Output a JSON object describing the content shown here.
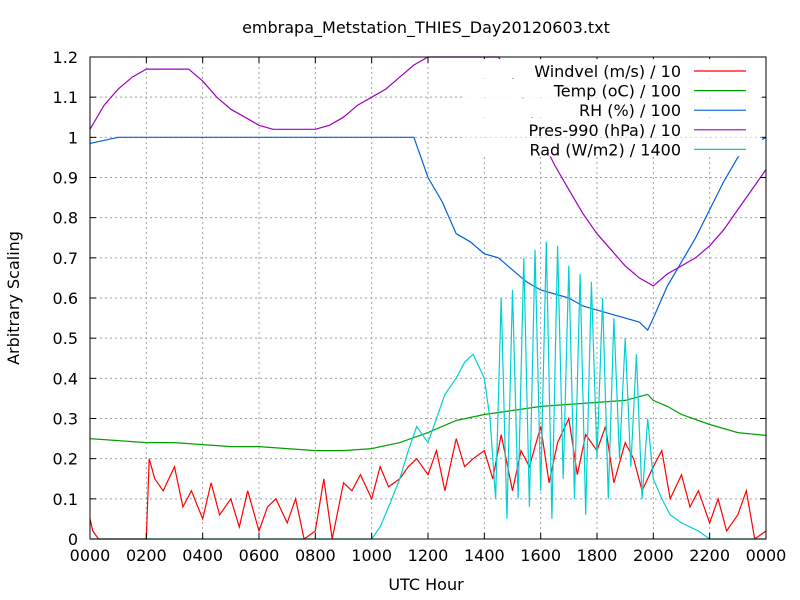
{
  "chart_data": {
    "type": "line",
    "title": "embrapa_Metstation_THIES_Day20120603.txt",
    "xlabel": "UTC Hour",
    "ylabel": "Arbitrary Scaling",
    "xlim": [
      0,
      24
    ],
    "ylim": [
      0,
      1.2
    ],
    "grid": true,
    "legend_position": "top-right",
    "x_ticks": [
      {
        "value": 0,
        "label": "0000"
      },
      {
        "value": 2,
        "label": "0200"
      },
      {
        "value": 4,
        "label": "0400"
      },
      {
        "value": 6,
        "label": "0600"
      },
      {
        "value": 8,
        "label": "0800"
      },
      {
        "value": 10,
        "label": "1000"
      },
      {
        "value": 12,
        "label": "1200"
      },
      {
        "value": 14,
        "label": "1400"
      },
      {
        "value": 16,
        "label": "1600"
      },
      {
        "value": 18,
        "label": "1800"
      },
      {
        "value": 20,
        "label": "2000"
      },
      {
        "value": 22,
        "label": "2200"
      },
      {
        "value": 24,
        "label": "0000"
      }
    ],
    "y_ticks": [
      {
        "value": 0,
        "label": "0"
      },
      {
        "value": 0.1,
        "label": "0.1"
      },
      {
        "value": 0.2,
        "label": "0.2"
      },
      {
        "value": 0.3,
        "label": "0.3"
      },
      {
        "value": 0.4,
        "label": "0.4"
      },
      {
        "value": 0.5,
        "label": "0.5"
      },
      {
        "value": 0.6,
        "label": "0.6"
      },
      {
        "value": 0.7,
        "label": "0.7"
      },
      {
        "value": 0.8,
        "label": "0.8"
      },
      {
        "value": 0.9,
        "label": "0.9"
      },
      {
        "value": 1.0,
        "label": "1"
      },
      {
        "value": 1.1,
        "label": "1.1"
      },
      {
        "value": 1.2,
        "label": "1.2"
      }
    ],
    "series": [
      {
        "name": "Windvel (m/s) / 10",
        "color": "#ff0000",
        "x": [
          0,
          0.1,
          0.3,
          1.0,
          2.0,
          2.1,
          2.3,
          2.6,
          3.0,
          3.3,
          3.6,
          4.0,
          4.3,
          4.6,
          5.0,
          5.3,
          5.6,
          6.0,
          6.3,
          6.6,
          7.0,
          7.3,
          7.6,
          8.0,
          8.3,
          8.6,
          9.0,
          9.3,
          9.6,
          10.0,
          10.3,
          10.6,
          11.0,
          11.3,
          11.6,
          12.0,
          12.3,
          12.6,
          13.0,
          13.3,
          13.6,
          14.0,
          14.3,
          14.6,
          15.0,
          15.3,
          15.6,
          16.0,
          16.3,
          16.6,
          17.0,
          17.3,
          17.6,
          18.0,
          18.3,
          18.6,
          19.0,
          19.3,
          19.6,
          20.0,
          20.3,
          20.6,
          21.0,
          21.3,
          21.6,
          22.0,
          22.3,
          22.6,
          23.0,
          23.3,
          23.6,
          24.0
        ],
        "y": [
          0.05,
          0.02,
          0.0,
          0.0,
          0.0,
          0.2,
          0.15,
          0.12,
          0.18,
          0.08,
          0.12,
          0.05,
          0.14,
          0.06,
          0.1,
          0.03,
          0.12,
          0.02,
          0.08,
          0.1,
          0.04,
          0.1,
          0.0,
          0.02,
          0.15,
          0.0,
          0.14,
          0.12,
          0.16,
          0.1,
          0.18,
          0.13,
          0.15,
          0.18,
          0.2,
          0.16,
          0.22,
          0.12,
          0.25,
          0.18,
          0.2,
          0.22,
          0.15,
          0.26,
          0.12,
          0.22,
          0.18,
          0.28,
          0.14,
          0.24,
          0.3,
          0.16,
          0.26,
          0.22,
          0.28,
          0.14,
          0.24,
          0.2,
          0.12,
          0.18,
          0.22,
          0.1,
          0.16,
          0.08,
          0.12,
          0.04,
          0.1,
          0.02,
          0.06,
          0.12,
          0.0,
          0.02
        ]
      },
      {
        "name": "Temp (oC) / 100",
        "color": "#00a000",
        "x": [
          0,
          1,
          2,
          3,
          4,
          5,
          6,
          7,
          8,
          9,
          10,
          11,
          12,
          13,
          14,
          15,
          16,
          17,
          18,
          19,
          19.8,
          20,
          20.5,
          21,
          22,
          23,
          24
        ],
        "y": [
          0.25,
          0.245,
          0.24,
          0.24,
          0.235,
          0.23,
          0.23,
          0.225,
          0.22,
          0.22,
          0.225,
          0.24,
          0.265,
          0.295,
          0.31,
          0.32,
          0.33,
          0.335,
          0.34,
          0.345,
          0.36,
          0.345,
          0.33,
          0.31,
          0.285,
          0.265,
          0.258
        ]
      },
      {
        "name": "RH (%) / 100",
        "color": "#0060e0",
        "x": [
          0,
          1,
          2,
          3,
          4,
          5,
          6,
          7,
          8,
          9,
          10,
          11,
          11.5,
          12,
          12.5,
          13,
          13.5,
          14,
          14.5,
          15,
          15.5,
          16,
          16.5,
          17,
          17.5,
          18,
          18.5,
          19,
          19.5,
          19.8,
          20,
          20.5,
          21,
          21.5,
          22,
          22.5,
          23,
          23.5,
          24
        ],
        "y": [
          0.985,
          1.0,
          1.0,
          1.0,
          1.0,
          1.0,
          1.0,
          1.0,
          1.0,
          1.0,
          1.0,
          1.0,
          1.0,
          0.9,
          0.84,
          0.76,
          0.74,
          0.71,
          0.7,
          0.67,
          0.64,
          0.62,
          0.61,
          0.6,
          0.58,
          0.57,
          0.56,
          0.55,
          0.54,
          0.52,
          0.55,
          0.63,
          0.69,
          0.75,
          0.82,
          0.89,
          0.95,
          0.98,
          1.0
        ]
      },
      {
        "name": "Pres-990 (hPa) / 10",
        "color": "#a000c0",
        "x": [
          0,
          0.5,
          1.0,
          1.5,
          2.0,
          2.5,
          3.0,
          3.5,
          4.0,
          4.5,
          5.0,
          5.5,
          6.0,
          6.5,
          7.0,
          7.5,
          8.0,
          8.5,
          9.0,
          9.5,
          10.0,
          10.5,
          11.0,
          11.5,
          12.0,
          12.5,
          13.0,
          13.5,
          14.0,
          14.5,
          15.0,
          15.5,
          16.0,
          16.5,
          17.0,
          17.5,
          18.0,
          18.5,
          19.0,
          19.5,
          20.0,
          20.5,
          21.0,
          21.5,
          22.0,
          22.5,
          23.0,
          23.5,
          24.0
        ],
        "y": [
          1.02,
          1.08,
          1.12,
          1.15,
          1.17,
          1.17,
          1.17,
          1.17,
          1.14,
          1.1,
          1.07,
          1.05,
          1.03,
          1.02,
          1.02,
          1.02,
          1.02,
          1.03,
          1.05,
          1.08,
          1.1,
          1.12,
          1.15,
          1.18,
          1.2,
          1.2,
          1.2,
          1.2,
          1.2,
          1.2,
          1.15,
          1.08,
          1.0,
          0.93,
          0.87,
          0.81,
          0.76,
          0.72,
          0.68,
          0.65,
          0.63,
          0.66,
          0.68,
          0.7,
          0.73,
          0.77,
          0.82,
          0.87,
          0.92
        ]
      },
      {
        "name": "Rad (W/m2) / 1400",
        "color": "#00d0d0",
        "x": [
          0,
          10.0,
          10.3,
          10.6,
          11.0,
          11.3,
          11.6,
          12.0,
          12.3,
          12.6,
          13.0,
          13.3,
          13.6,
          14.0,
          14.2,
          14.4,
          14.6,
          14.8,
          15.0,
          15.2,
          15.4,
          15.6,
          15.8,
          16.0,
          16.2,
          16.4,
          16.6,
          16.8,
          17.0,
          17.2,
          17.4,
          17.6,
          17.8,
          18.0,
          18.2,
          18.4,
          18.6,
          18.8,
          19.0,
          19.2,
          19.4,
          19.6,
          19.8,
          20.0,
          20.3,
          20.6,
          21.0,
          21.3,
          21.6,
          22.0,
          22.3,
          22.6,
          24.0
        ],
        "y": [
          0,
          0.0,
          0.03,
          0.08,
          0.15,
          0.22,
          0.28,
          0.24,
          0.3,
          0.36,
          0.4,
          0.44,
          0.46,
          0.4,
          0.3,
          0.1,
          0.6,
          0.05,
          0.62,
          0.1,
          0.7,
          0.08,
          0.72,
          0.12,
          0.74,
          0.05,
          0.73,
          0.15,
          0.68,
          0.1,
          0.66,
          0.06,
          0.64,
          0.2,
          0.6,
          0.1,
          0.55,
          0.2,
          0.5,
          0.18,
          0.46,
          0.1,
          0.3,
          0.15,
          0.1,
          0.06,
          0.04,
          0.03,
          0.02,
          0.0,
          0.0,
          0.0,
          0.0
        ]
      }
    ]
  }
}
